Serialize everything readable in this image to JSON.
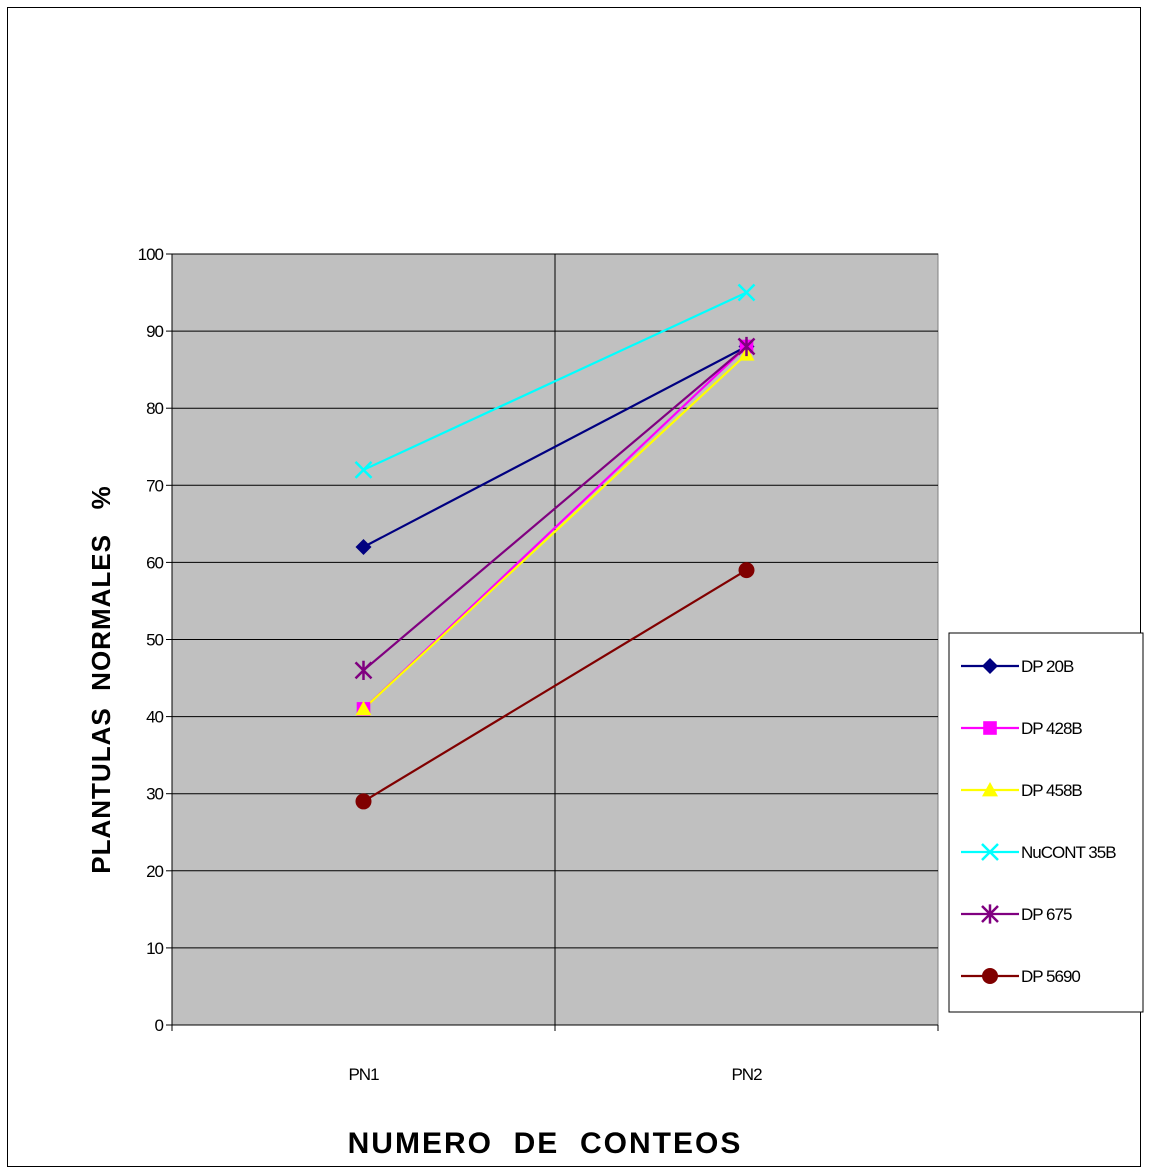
{
  "chart_data": {
    "type": "line",
    "categories": [
      "PN1",
      "PN2"
    ],
    "xlabel": "NUMERO  DE  CONTEOS",
    "ylabel": "PLANTULAS  NORMALES   %",
    "ylim": [
      0,
      100
    ],
    "yticks": [
      0,
      10,
      20,
      30,
      40,
      50,
      60,
      70,
      80,
      90,
      100
    ],
    "grid": true,
    "legend": "right",
    "background_color": "#c0c0c0",
    "series": [
      {
        "name": "DP 20B",
        "values": [
          62,
          88
        ],
        "color": "#000080",
        "marker": "diamond"
      },
      {
        "name": "DP 428B",
        "values": [
          41,
          88
        ],
        "color": "#ff00ff",
        "marker": "square"
      },
      {
        "name": "DP 458B",
        "values": [
          41,
          87
        ],
        "color": "#ffff00",
        "marker": "triangle"
      },
      {
        "name": "NuCONT 35B",
        "values": [
          72,
          95
        ],
        "color": "#00ffff",
        "marker": "x"
      },
      {
        "name": "DP 675",
        "values": [
          46,
          88
        ],
        "color": "#800080",
        "marker": "star"
      },
      {
        "name": "DP 5690",
        "values": [
          29,
          59
        ],
        "color": "#800000",
        "marker": "circle"
      }
    ]
  }
}
